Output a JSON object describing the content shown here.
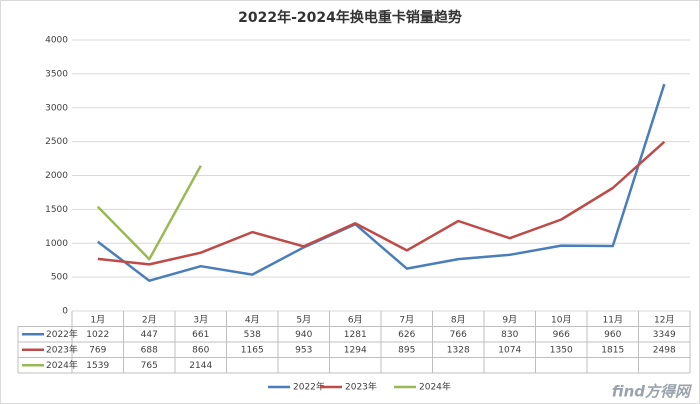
{
  "chart_data": {
    "type": "line",
    "title": "2022年-2024年换电重卡销量趋势",
    "categories": [
      "1月",
      "2月",
      "3月",
      "4月",
      "5月",
      "6月",
      "7月",
      "8月",
      "9月",
      "10月",
      "11月",
      "12月"
    ],
    "series": [
      {
        "name": "2022年",
        "color": "#4a7ebb",
        "values": [
          1022,
          447,
          661,
          538,
          940,
          1281,
          626,
          766,
          830,
          966,
          960,
          3349
        ]
      },
      {
        "name": "2023年",
        "color": "#be4b48",
        "values": [
          769,
          688,
          860,
          1165,
          953,
          1294,
          895,
          1328,
          1074,
          1350,
          1815,
          2498
        ]
      },
      {
        "name": "2024年",
        "color": "#98b954",
        "values": [
          1539,
          765,
          2144,
          null,
          null,
          null,
          null,
          null,
          null,
          null,
          null,
          null
        ]
      }
    ],
    "ylim": [
      0,
      4000
    ],
    "yticks": [
      0,
      500,
      1000,
      1500,
      2000,
      2500,
      3000,
      3500,
      4000
    ],
    "grid": true,
    "legend": "bottom",
    "watermark": "find方得网"
  }
}
